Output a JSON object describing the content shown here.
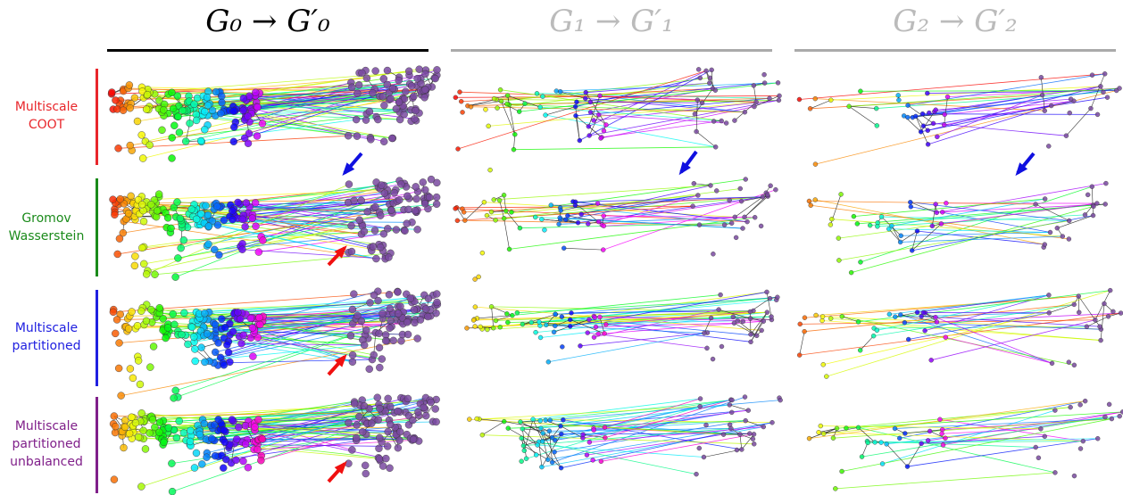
{
  "columns": [
    "G₀ → G′₀",
    "G₁ → G′₁",
    "G₂ → G′₂"
  ],
  "rows": [
    {
      "label": [
        "Multiscale",
        "COOT"
      ]
    },
    {
      "label": [
        "Gromov",
        "Wasserstein"
      ]
    },
    {
      "label": [
        "Multiscale",
        "partitioned"
      ]
    },
    {
      "label": [
        "Multiscale",
        "partitioned",
        "unbalanced"
      ]
    }
  ]
}
